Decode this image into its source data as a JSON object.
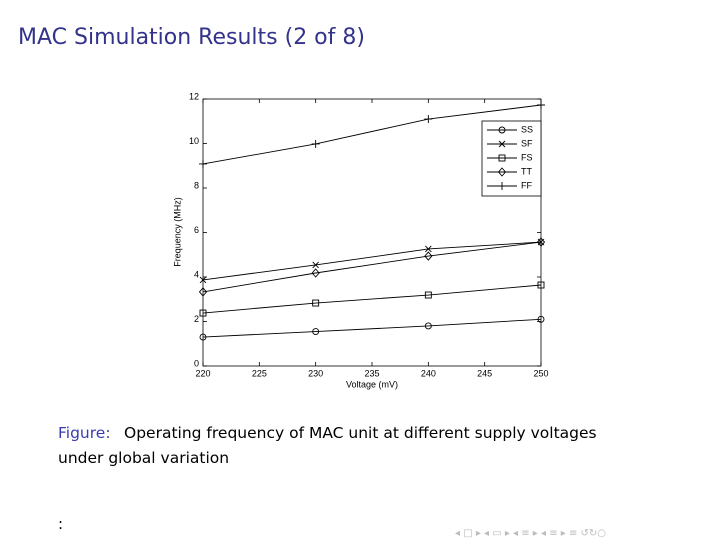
{
  "slide_title": "MAC Simulation Results (2 of 8)",
  "caption_label": "Figure:",
  "caption_lines": [
    "Operating frequency of MAC unit at different supply voltages",
    "under global variation"
  ],
  "footer_text": ":",
  "chart_data": {
    "type": "line",
    "x_label": "Voltage (mV)",
    "y_label": "Frequency (MHz)",
    "x": [
      220,
      230,
      240,
      250
    ],
    "xlim": [
      220,
      250
    ],
    "xticks": [
      220,
      225,
      230,
      235,
      240,
      245,
      250
    ],
    "ylim": [
      0,
      12
    ],
    "yticks": [
      0,
      2,
      4,
      6,
      8,
      10,
      12
    ],
    "grid": false,
    "legend": "upper right",
    "series": [
      {
        "name": "SS",
        "color": "#000000",
        "marker": "circle",
        "values": [
          1.3,
          1.55,
          1.8,
          2.1
        ]
      },
      {
        "name": "SF",
        "color": "#000000",
        "marker": "x",
        "values": [
          3.87,
          4.54,
          5.26,
          5.57
        ]
      },
      {
        "name": "FS",
        "color": "#000000",
        "marker": "square",
        "values": [
          2.38,
          2.83,
          3.19,
          3.64
        ]
      },
      {
        "name": "TT",
        "color": "#000000",
        "marker": "diamond",
        "values": [
          3.33,
          4.18,
          4.94,
          5.57
        ]
      },
      {
        "name": "FF",
        "color": "#000000",
        "marker": "plus",
        "values": [
          9.08,
          9.98,
          11.1,
          11.73
        ]
      }
    ]
  }
}
